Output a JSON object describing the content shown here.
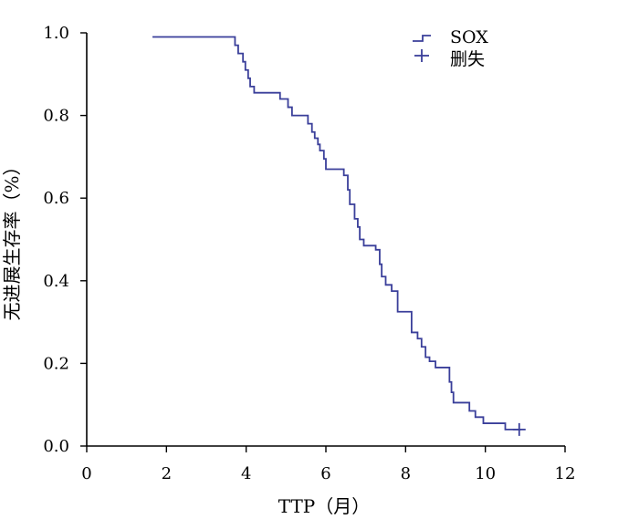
{
  "chart_data": {
    "type": "line",
    "subtype": "kaplan-meier-step",
    "xlabel": "TTP（月）",
    "ylabel": "无进展生存率（%）",
    "xlim": [
      0,
      12
    ],
    "ylim": [
      0,
      1.0
    ],
    "x_ticks": [
      "0",
      "2",
      "4",
      "6",
      "8",
      "10",
      "12"
    ],
    "y_ticks": [
      "0.0",
      "0.2",
      "0.4",
      "0.6",
      "0.8",
      "1.0"
    ],
    "grid": false,
    "legend_position": "top-right",
    "legend": [
      {
        "label": "SOX",
        "marker": "step"
      },
      {
        "label": "删失",
        "marker": "plus"
      }
    ],
    "series": [
      {
        "name": "SOX",
        "color": "#3a3f9a",
        "steps": [
          [
            1.65,
            0.99
          ],
          [
            3.65,
            0.99
          ],
          [
            3.72,
            0.97
          ],
          [
            3.8,
            0.95
          ],
          [
            3.92,
            0.93
          ],
          [
            3.98,
            0.91
          ],
          [
            4.05,
            0.89
          ],
          [
            4.1,
            0.87
          ],
          [
            4.2,
            0.855
          ],
          [
            4.85,
            0.84
          ],
          [
            5.05,
            0.82
          ],
          [
            5.15,
            0.8
          ],
          [
            5.55,
            0.78
          ],
          [
            5.65,
            0.76
          ],
          [
            5.72,
            0.745
          ],
          [
            5.8,
            0.73
          ],
          [
            5.85,
            0.715
          ],
          [
            5.95,
            0.695
          ],
          [
            6.0,
            0.67
          ],
          [
            6.45,
            0.655
          ],
          [
            6.55,
            0.62
          ],
          [
            6.6,
            0.585
          ],
          [
            6.72,
            0.55
          ],
          [
            6.8,
            0.53
          ],
          [
            6.85,
            0.5
          ],
          [
            6.95,
            0.485
          ],
          [
            7.25,
            0.475
          ],
          [
            7.35,
            0.44
          ],
          [
            7.4,
            0.41
          ],
          [
            7.5,
            0.39
          ],
          [
            7.65,
            0.375
          ],
          [
            7.8,
            0.325
          ],
          [
            8.15,
            0.275
          ],
          [
            8.3,
            0.26
          ],
          [
            8.4,
            0.24
          ],
          [
            8.5,
            0.215
          ],
          [
            8.6,
            0.205
          ],
          [
            8.75,
            0.19
          ],
          [
            9.1,
            0.155
          ],
          [
            9.15,
            0.13
          ],
          [
            9.2,
            0.105
          ],
          [
            9.6,
            0.085
          ],
          [
            9.75,
            0.07
          ],
          [
            9.95,
            0.055
          ],
          [
            10.5,
            0.04
          ],
          [
            10.9,
            0.04
          ]
        ],
        "censored": [
          [
            10.85,
            0.04
          ]
        ]
      }
    ]
  }
}
